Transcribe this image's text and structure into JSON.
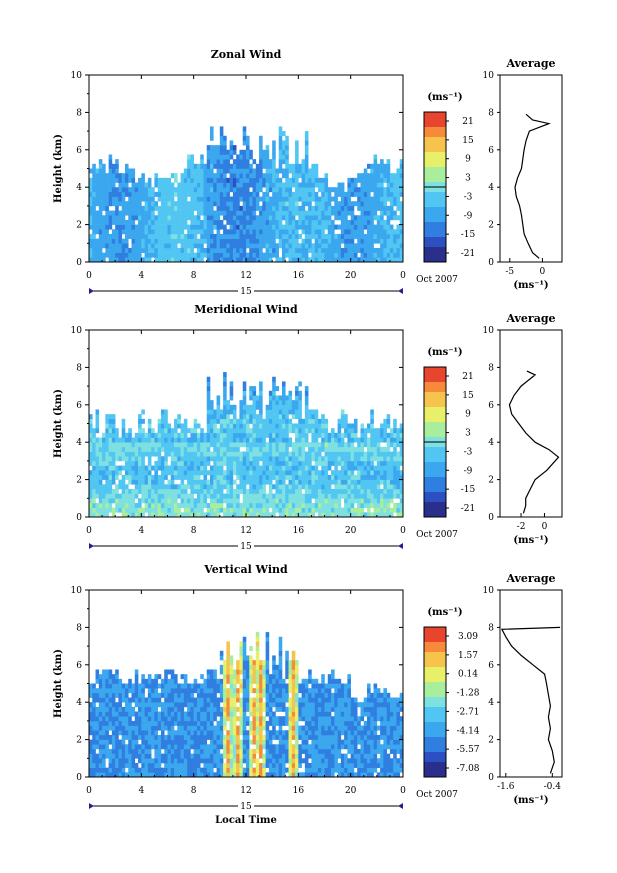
{
  "figure": {
    "date_label": "Oct 2007",
    "xlabel": "Local Time",
    "day_label": "15"
  },
  "palette": {
    "colorscale": [
      "#2a2f8c",
      "#2c4fc1",
      "#2f7ee0",
      "#3aa7ee",
      "#52c6f2",
      "#7ee0e0",
      "#a8ee9c",
      "#e8f06a",
      "#f6c44c",
      "#f68a3a",
      "#e8452e"
    ]
  },
  "chart_data": [
    {
      "type": "heatmap",
      "title": "Zonal Wind",
      "ylabel": "Height (km)",
      "x_ticks": [
        "0",
        "4",
        "8",
        "12",
        "16",
        "20",
        "0"
      ],
      "y_ticks": [
        "0",
        "2",
        "4",
        "6",
        "8",
        "10"
      ],
      "xlim": [
        0,
        24
      ],
      "ylim": [
        0,
        10
      ],
      "cbar_unit": "(ms⁻¹)",
      "cbar_ticks": [
        "21",
        "15",
        "9",
        "3",
        "-3",
        "-9",
        "-15",
        "-21"
      ],
      "cbar_range": [
        -24,
        24
      ],
      "avg": {
        "title": "Average",
        "xlabel": "(ms⁻¹)",
        "x_ticks": [
          "-5",
          "0"
        ],
        "x_tick_values": [
          -5,
          0
        ],
        "xlim": [
          -6.5,
          3
        ],
        "profile": [
          [
            -0.5,
            0.2
          ],
          [
            -1.5,
            0.5
          ],
          [
            -2.2,
            1.0
          ],
          [
            -2.8,
            1.5
          ],
          [
            -3.0,
            2.0
          ],
          [
            -3.2,
            2.5
          ],
          [
            -3.5,
            3.0
          ],
          [
            -4.0,
            3.5
          ],
          [
            -4.2,
            4.0
          ],
          [
            -3.8,
            4.5
          ],
          [
            -3.2,
            5.0
          ],
          [
            -3.0,
            5.5
          ],
          [
            -2.8,
            6.0
          ],
          [
            -2.5,
            6.5
          ],
          [
            -2.0,
            7.0
          ],
          [
            1.0,
            7.4
          ],
          [
            -1.5,
            7.6
          ],
          [
            -2.5,
            7.9
          ]
        ]
      }
    },
    {
      "type": "heatmap",
      "title": "Meridional Wind",
      "ylabel": "Height (km)",
      "x_ticks": [
        "0",
        "4",
        "8",
        "12",
        "16",
        "20",
        "0"
      ],
      "y_ticks": [
        "0",
        "2",
        "4",
        "6",
        "8",
        "10"
      ],
      "xlim": [
        0,
        24
      ],
      "ylim": [
        0,
        10
      ],
      "cbar_unit": "(ms⁻¹)",
      "cbar_ticks": [
        "21",
        "15",
        "9",
        "3",
        "-3",
        "-9",
        "-15",
        "-21"
      ],
      "cbar_range": [
        -24,
        24
      ],
      "avg": {
        "title": "Average",
        "xlabel": "(ms⁻¹)",
        "x_ticks": [
          "-2",
          "0"
        ],
        "x_tick_values": [
          -2,
          0
        ],
        "xlim": [
          -3.8,
          1.5
        ],
        "profile": [
          [
            -1.8,
            0.2
          ],
          [
            -1.6,
            0.6
          ],
          [
            -1.6,
            1.0
          ],
          [
            -1.2,
            1.5
          ],
          [
            -0.8,
            2.0
          ],
          [
            0.2,
            2.5
          ],
          [
            1.2,
            3.2
          ],
          [
            0.4,
            3.6
          ],
          [
            -0.8,
            4.0
          ],
          [
            -1.6,
            4.5
          ],
          [
            -2.2,
            5.0
          ],
          [
            -2.8,
            5.5
          ],
          [
            -3.0,
            6.0
          ],
          [
            -2.6,
            6.5
          ],
          [
            -2.0,
            7.0
          ],
          [
            -1.2,
            7.4
          ],
          [
            -0.8,
            7.6
          ],
          [
            -1.5,
            7.8
          ]
        ]
      }
    },
    {
      "type": "heatmap",
      "title": "Vertical Wind",
      "ylabel": "Height (km)",
      "x_ticks": [
        "0",
        "4",
        "8",
        "12",
        "16",
        "20",
        "0"
      ],
      "y_ticks": [
        "0",
        "2",
        "4",
        "6",
        "8",
        "10"
      ],
      "xlim": [
        0,
        24
      ],
      "ylim": [
        0,
        10
      ],
      "cbar_unit": "(ms⁻¹)",
      "cbar_ticks": [
        "3.09",
        "1.57",
        "0.14",
        "-1.28",
        "-2.71",
        "-4.14",
        "-5.57",
        "-7.08"
      ],
      "cbar_range": [
        3.9,
        -7.9
      ],
      "avg": {
        "title": "Average",
        "xlabel": "(ms⁻¹)",
        "x_ticks": [
          "-1.6",
          "-0.4"
        ],
        "x_tick_values": [
          -1.6,
          -0.4
        ],
        "xlim": [
          -1.75,
          -0.15
        ],
        "profile": [
          [
            -0.45,
            0.2
          ],
          [
            -0.35,
            0.8
          ],
          [
            -0.4,
            1.4
          ],
          [
            -0.5,
            2.0
          ],
          [
            -0.45,
            2.6
          ],
          [
            -0.5,
            3.2
          ],
          [
            -0.45,
            3.8
          ],
          [
            -0.5,
            4.4
          ],
          [
            -0.55,
            5.0
          ],
          [
            -0.6,
            5.5
          ],
          [
            -0.9,
            6.0
          ],
          [
            -1.2,
            6.5
          ],
          [
            -1.45,
            7.0
          ],
          [
            -1.6,
            7.5
          ],
          [
            -1.7,
            7.9
          ],
          [
            -0.2,
            8.0
          ]
        ]
      }
    }
  ]
}
